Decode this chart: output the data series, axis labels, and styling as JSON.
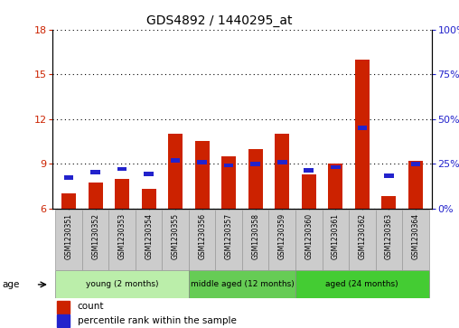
{
  "title": "GDS4892 / 1440295_at",
  "samples": [
    "GSM1230351",
    "GSM1230352",
    "GSM1230353",
    "GSM1230354",
    "GSM1230355",
    "GSM1230356",
    "GSM1230357",
    "GSM1230358",
    "GSM1230359",
    "GSM1230360",
    "GSM1230361",
    "GSM1230362",
    "GSM1230363",
    "GSM1230364"
  ],
  "count_values": [
    7.0,
    7.7,
    8.0,
    7.3,
    11.0,
    10.5,
    9.5,
    10.0,
    11.0,
    8.3,
    9.0,
    16.0,
    6.8,
    9.2
  ],
  "percentile_values": [
    17,
    20,
    22,
    19,
    27,
    26,
    24,
    25,
    26,
    21,
    23,
    45,
    18,
    25
  ],
  "base_value": 6.0,
  "ylim_left": [
    6,
    18
  ],
  "ylim_right": [
    0,
    100
  ],
  "yticks_left": [
    6,
    9,
    12,
    15,
    18
  ],
  "yticks_right": [
    0,
    25,
    50,
    75,
    100
  ],
  "bar_color_red": "#cc2200",
  "bar_color_blue": "#2222cc",
  "bar_width": 0.55,
  "groups": [
    {
      "label": "young (2 months)",
      "start": 0,
      "end": 4,
      "color": "#bbeeaa"
    },
    {
      "label": "middle aged (12 months)",
      "start": 5,
      "end": 8,
      "color": "#66cc55"
    },
    {
      "label": "aged (24 months)",
      "start": 9,
      "end": 13,
      "color": "#44cc33"
    }
  ],
  "age_label": "age",
  "legend_count": "count",
  "legend_percentile": "percentile rank within the sample",
  "tick_color_left": "#cc2200",
  "tick_color_right": "#2222cc",
  "background_plot": "#ffffff",
  "label_box_color": "#cccccc",
  "grid_color": "#000000"
}
